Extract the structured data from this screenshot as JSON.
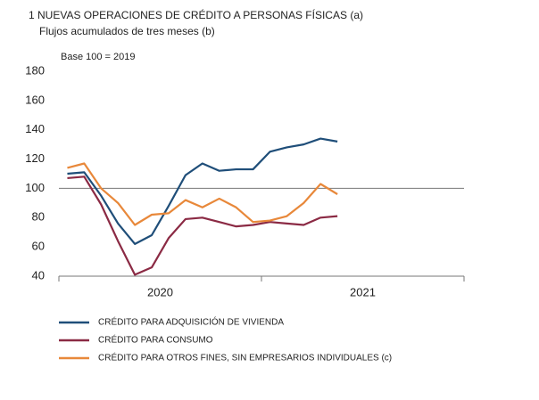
{
  "chart_data": {
    "type": "line",
    "title": "1  NUEVAS OPERACIONES DE CRÉDITO A PERSONAS FÍSICAS (a)",
    "subtitle": "Flujos acumulados de tres meses (b)",
    "annotation": "Base 100 = 2019",
    "categories": [
      null,
      null,
      null,
      null,
      null,
      null,
      null,
      null,
      null,
      null,
      null,
      null,
      null,
      null,
      null,
      null,
      null
    ],
    "x_groups": [
      {
        "label": "2020",
        "count": 12
      },
      {
        "label": "2021",
        "count": 12
      }
    ],
    "ylim": [
      40,
      180
    ],
    "yticks": [
      40,
      60,
      80,
      100,
      120,
      140,
      160,
      180
    ],
    "reference_line": 100,
    "series": [
      {
        "name": "CRÉDITO PARA ADQUISICIÓN DE VIVIENDA",
        "color": "#1f4e79",
        "values": [
          110,
          111,
          95,
          76,
          62,
          68,
          88,
          109,
          117,
          112,
          113,
          113,
          125,
          128,
          130,
          134,
          132
        ]
      },
      {
        "name": "CRÉDITO PARA CONSUMO",
        "color": "#8b2a44",
        "values": [
          107,
          108,
          89,
          64,
          41,
          46,
          66,
          79,
          80,
          77,
          74,
          75,
          77,
          76,
          75,
          80,
          81
        ]
      },
      {
        "name": "CRÉDITO PARA OTROS FINES, SIN EMPRESARIOS INDIVIDUALES (c)",
        "color": "#e8883a",
        "values": [
          114,
          117,
          100,
          90,
          75,
          82,
          83,
          92,
          87,
          93,
          87,
          77,
          78,
          81,
          90,
          103,
          96
        ]
      }
    ]
  }
}
